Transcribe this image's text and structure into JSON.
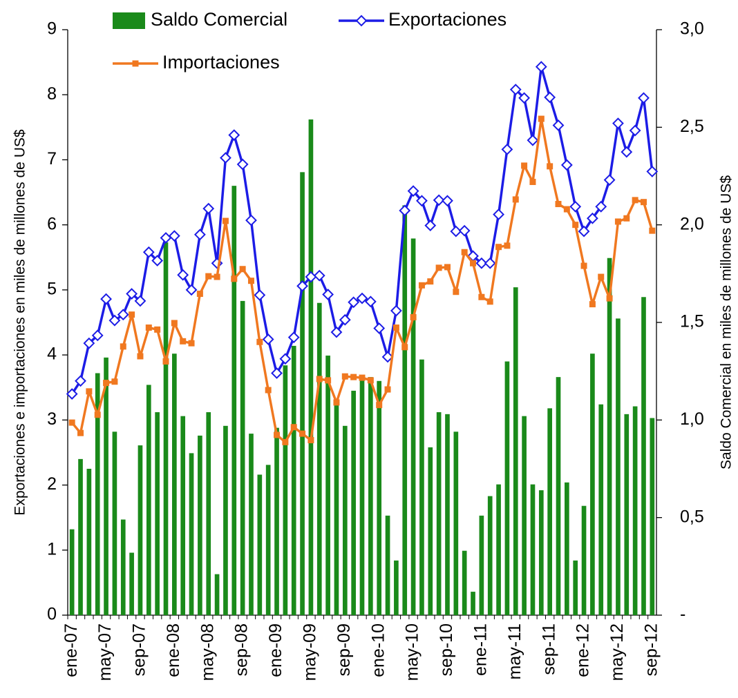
{
  "chart_data": {
    "type": "bar",
    "y_axis_label": "Exportaciones e importaciones en miles de millones de US$",
    "y2_axis_label": "Saldo Comercial en miles de millones de US$",
    "categories": [
      "ene-07",
      null,
      null,
      null,
      "may-07",
      null,
      null,
      null,
      "sep-07",
      null,
      null,
      null,
      "ene-08",
      null,
      null,
      null,
      "may-08",
      null,
      null,
      null,
      "sep-08",
      null,
      null,
      null,
      "ene-09",
      null,
      null,
      null,
      "may-09",
      null,
      null,
      null,
      "sep-09",
      null,
      null,
      null,
      "ene-10",
      null,
      null,
      null,
      "may-10",
      null,
      null,
      null,
      "sep-10",
      null,
      null,
      null,
      "ene-11",
      null,
      null,
      null,
      "may-11",
      null,
      null,
      null,
      "sep-11",
      null,
      null,
      null,
      "ene-12",
      null,
      null,
      null,
      "may-12",
      null,
      null,
      null,
      "sep-12"
    ],
    "series": [
      {
        "name": "Saldo Comercial",
        "type": "bar",
        "axis": "y2",
        "color": "#1a8a1a",
        "values": [
          0.44,
          0.8,
          0.75,
          1.24,
          1.32,
          0.94,
          0.49,
          0.32,
          0.87,
          1.18,
          1.04,
          1.91,
          1.34,
          1.02,
          0.83,
          0.92,
          1.04,
          0.21,
          0.97,
          2.2,
          1.61,
          0.93,
          0.72,
          0.77,
          0.96,
          1.28,
          1.38,
          2.27,
          2.54,
          1.6,
          1.33,
          1.08,
          0.97,
          1.15,
          1.21,
          1.22,
          1.2,
          0.51,
          0.28,
          2.1,
          1.93,
          1.31,
          0.86,
          1.04,
          1.03,
          0.94,
          0.33,
          0.12,
          0.51,
          0.61,
          0.67,
          1.3,
          1.68,
          1.02,
          0.67,
          0.64,
          1.06,
          1.22,
          0.68,
          0.28,
          0.56,
          1.34,
          1.08,
          1.83,
          1.52,
          1.03,
          1.07,
          1.63,
          1.01
        ]
      },
      {
        "name": "Exportaciones",
        "type": "line",
        "marker": "diamond",
        "color": "#1c1ce6",
        "values": [
          3.4,
          3.6,
          4.18,
          4.3,
          4.86,
          4.53,
          4.62,
          4.94,
          4.83,
          5.58,
          5.45,
          5.8,
          5.83,
          5.23,
          5.0,
          5.85,
          6.25,
          5.41,
          7.03,
          7.38,
          6.93,
          6.07,
          4.92,
          4.24,
          3.72,
          3.94,
          4.27,
          5.06,
          5.2,
          5.22,
          4.93,
          4.35,
          4.54,
          4.81,
          4.87,
          4.82,
          4.41,
          3.97,
          4.68,
          6.22,
          6.52,
          6.37,
          5.99,
          6.38,
          6.37,
          5.9,
          5.91,
          5.52,
          5.41,
          5.41,
          6.16,
          7.16,
          8.08,
          7.95,
          7.3,
          8.43,
          7.96,
          7.53,
          6.92,
          6.28,
          5.9,
          6.1,
          6.28,
          6.69,
          7.56,
          7.12,
          7.45,
          7.95,
          6.82
        ]
      },
      {
        "name": "Importaciones",
        "type": "line",
        "marker": "square",
        "color": "#f07820",
        "values": [
          2.96,
          2.8,
          3.44,
          3.08,
          3.57,
          3.59,
          4.13,
          4.62,
          3.98,
          4.42,
          4.39,
          3.9,
          4.49,
          4.21,
          4.18,
          4.94,
          5.21,
          5.2,
          6.06,
          5.17,
          5.32,
          5.14,
          4.2,
          3.46,
          2.77,
          2.66,
          2.89,
          2.79,
          2.69,
          3.63,
          3.61,
          3.27,
          3.67,
          3.66,
          3.65,
          3.61,
          3.23,
          3.47,
          4.42,
          4.12,
          4.58,
          5.07,
          5.13,
          5.34,
          5.35,
          4.97,
          5.58,
          5.41,
          4.89,
          4.82,
          5.66,
          5.68,
          6.39,
          6.91,
          6.66,
          7.63,
          6.9,
          6.32,
          6.24,
          6.0,
          5.37,
          4.78,
          5.2,
          4.87,
          6.05,
          6.1,
          6.38,
          6.35,
          5.91
        ]
      }
    ],
    "ylim": [
      0,
      9
    ],
    "yticks": [
      0,
      1,
      2,
      3,
      4,
      5,
      6,
      7,
      8,
      9
    ],
    "y2lim": [
      0,
      3
    ],
    "y2ticks": [
      {
        "value": 0,
        "label": "-"
      },
      {
        "value": 0.5,
        "label": "0,5"
      },
      {
        "value": 1,
        "label": "1,0"
      },
      {
        "value": 1.5,
        "label": "1,5"
      },
      {
        "value": 2,
        "label": "2,0"
      },
      {
        "value": 2.5,
        "label": "2,5"
      },
      {
        "value": 3,
        "label": "3,0"
      }
    ],
    "grid": false
  }
}
